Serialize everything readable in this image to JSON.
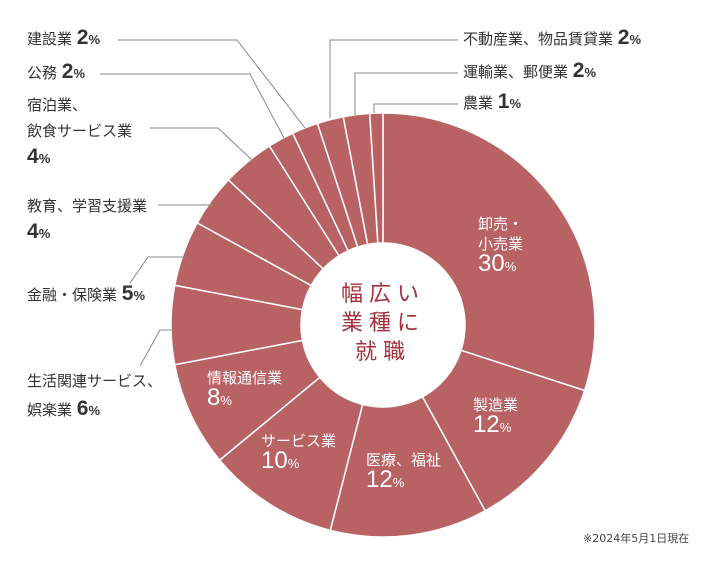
{
  "chart_data": {
    "type": "pie",
    "donut": true,
    "center_label": [
      "幅広い",
      "業種に",
      "就職"
    ],
    "slices": [
      {
        "label": "卸売・小売業",
        "label_lines": [
          "卸売・",
          "小売業"
        ],
        "value": 30
      },
      {
        "label": "製造業",
        "label_lines": [
          "製造業"
        ],
        "value": 12
      },
      {
        "label": "医療、福祉",
        "label_lines": [
          "医療、福祉"
        ],
        "value": 12
      },
      {
        "label": "サービス業",
        "label_lines": [
          "サービス業"
        ],
        "value": 10
      },
      {
        "label": "情報通信業",
        "label_lines": [
          "情報通信業"
        ],
        "value": 8
      },
      {
        "label": "生活関連サービス、娯楽業",
        "label_lines": [
          "生活関連サービス、",
          "娯楽業"
        ],
        "value": 6
      },
      {
        "label": "金融・保険業",
        "label_lines": [
          "金融・保険業"
        ],
        "value": 5
      },
      {
        "label": "教育、学習支援業",
        "label_lines": [
          "教育、学習支援業"
        ],
        "value": 4
      },
      {
        "label": "宿泊業、飲食サービス業",
        "label_lines": [
          "宿泊業、",
          "飲食サービス業"
        ],
        "value": 4
      },
      {
        "label": "公務",
        "label_lines": [
          "公務"
        ],
        "value": 2
      },
      {
        "label": "建設業",
        "label_lines": [
          "建設業"
        ],
        "value": 2
      },
      {
        "label": "不動産業、物品賃貸業",
        "label_lines": [
          "不動産業、物品賃貸業"
        ],
        "value": 2
      },
      {
        "label": "運輸業、郵便業",
        "label_lines": [
          "運輸業、郵便業"
        ],
        "value": 2
      },
      {
        "label": "農業",
        "label_lines": [
          "農業"
        ],
        "value": 1
      }
    ],
    "unit": "%",
    "colors": {
      "slice": "#b96264",
      "separator": "#ffffff",
      "leader": "#888888",
      "center_text": "#a3303c"
    },
    "footnote": "※2024年5月1日現在"
  }
}
